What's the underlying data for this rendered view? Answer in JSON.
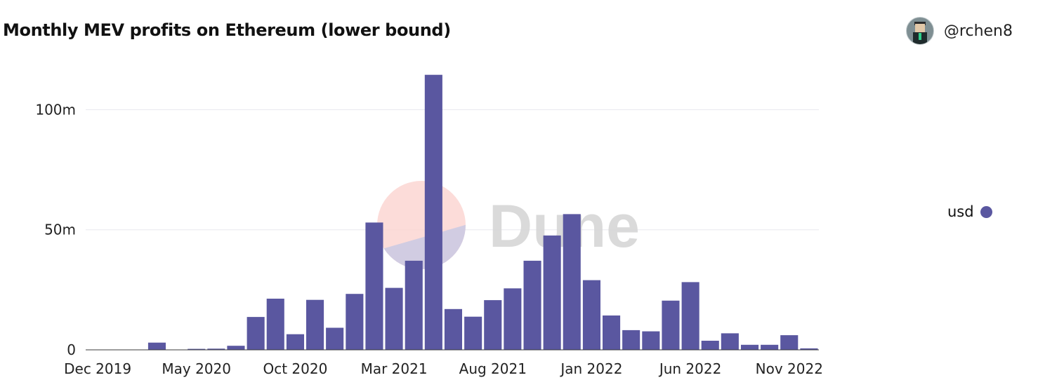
{
  "header": {
    "title": "Monthly MEV profits on Ethereum (lower bound)",
    "author": "@rchen8"
  },
  "watermark": {
    "text": "Dune"
  },
  "icons": {
    "avatar": "user-avatar-icon",
    "legend_marker": "circle-marker-icon"
  },
  "colors": {
    "bar": "#5a57a0",
    "grid": "#e8e8ee",
    "watermark_text": "#d6d6d6",
    "watermark_top": "#fbd3cf",
    "watermark_bottom": "#c9c9e3"
  },
  "chart_data": {
    "type": "bar",
    "title": "Monthly MEV profits on Ethereum (lower bound)",
    "xlabel": "",
    "ylabel": "",
    "categories": [
      "Dec 2019",
      "Jan 2020",
      "Feb 2020",
      "Mar 2020",
      "Apr 2020",
      "May 2020",
      "Jun 2020",
      "Jul 2020",
      "Aug 2020",
      "Sep 2020",
      "Oct 2020",
      "Nov 2020",
      "Dec 2020",
      "Jan 2021",
      "Feb 2021",
      "Mar 2021",
      "Apr 2021",
      "May 2021",
      "Jun 2021",
      "Jul 2021",
      "Aug 2021",
      "Sep 2021",
      "Oct 2021",
      "Nov 2021",
      "Dec 2021",
      "Jan 2022",
      "Feb 2022",
      "Mar 2022",
      "Apr 2022",
      "May 2022",
      "Jun 2022",
      "Jul 2022",
      "Aug 2022",
      "Sep 2022",
      "Oct 2022",
      "Nov 2022",
      "Dec 2022"
    ],
    "series": [
      {
        "name": "usd",
        "values": [
          0,
          0,
          0,
          3.0,
          0,
          0.4,
          0.5,
          1.7,
          13.7,
          21.3,
          6.5,
          20.8,
          9.2,
          23.3,
          53.0,
          25.8,
          37.1,
          114.5,
          17.0,
          13.8,
          20.7,
          25.6,
          37.1,
          47.6,
          56.5,
          29.0,
          14.3,
          8.2,
          7.7,
          20.5,
          28.2,
          3.8,
          6.9,
          2.1,
          2.1,
          6.1,
          0.6
        ]
      }
    ],
    "ylim": [
      0,
      115
    ],
    "yticks": [
      0,
      50,
      100
    ],
    "ytick_labels": [
      "0",
      "50m",
      "100m"
    ],
    "xtick_labels": [
      "Dec 2019",
      "May 2020",
      "Oct 2020",
      "Mar 2021",
      "Aug 2021",
      "Jan 2022",
      "Jun 2022",
      "Nov 2022"
    ],
    "legend": {
      "position": "right",
      "entries": [
        "usd"
      ]
    },
    "grid": true
  }
}
